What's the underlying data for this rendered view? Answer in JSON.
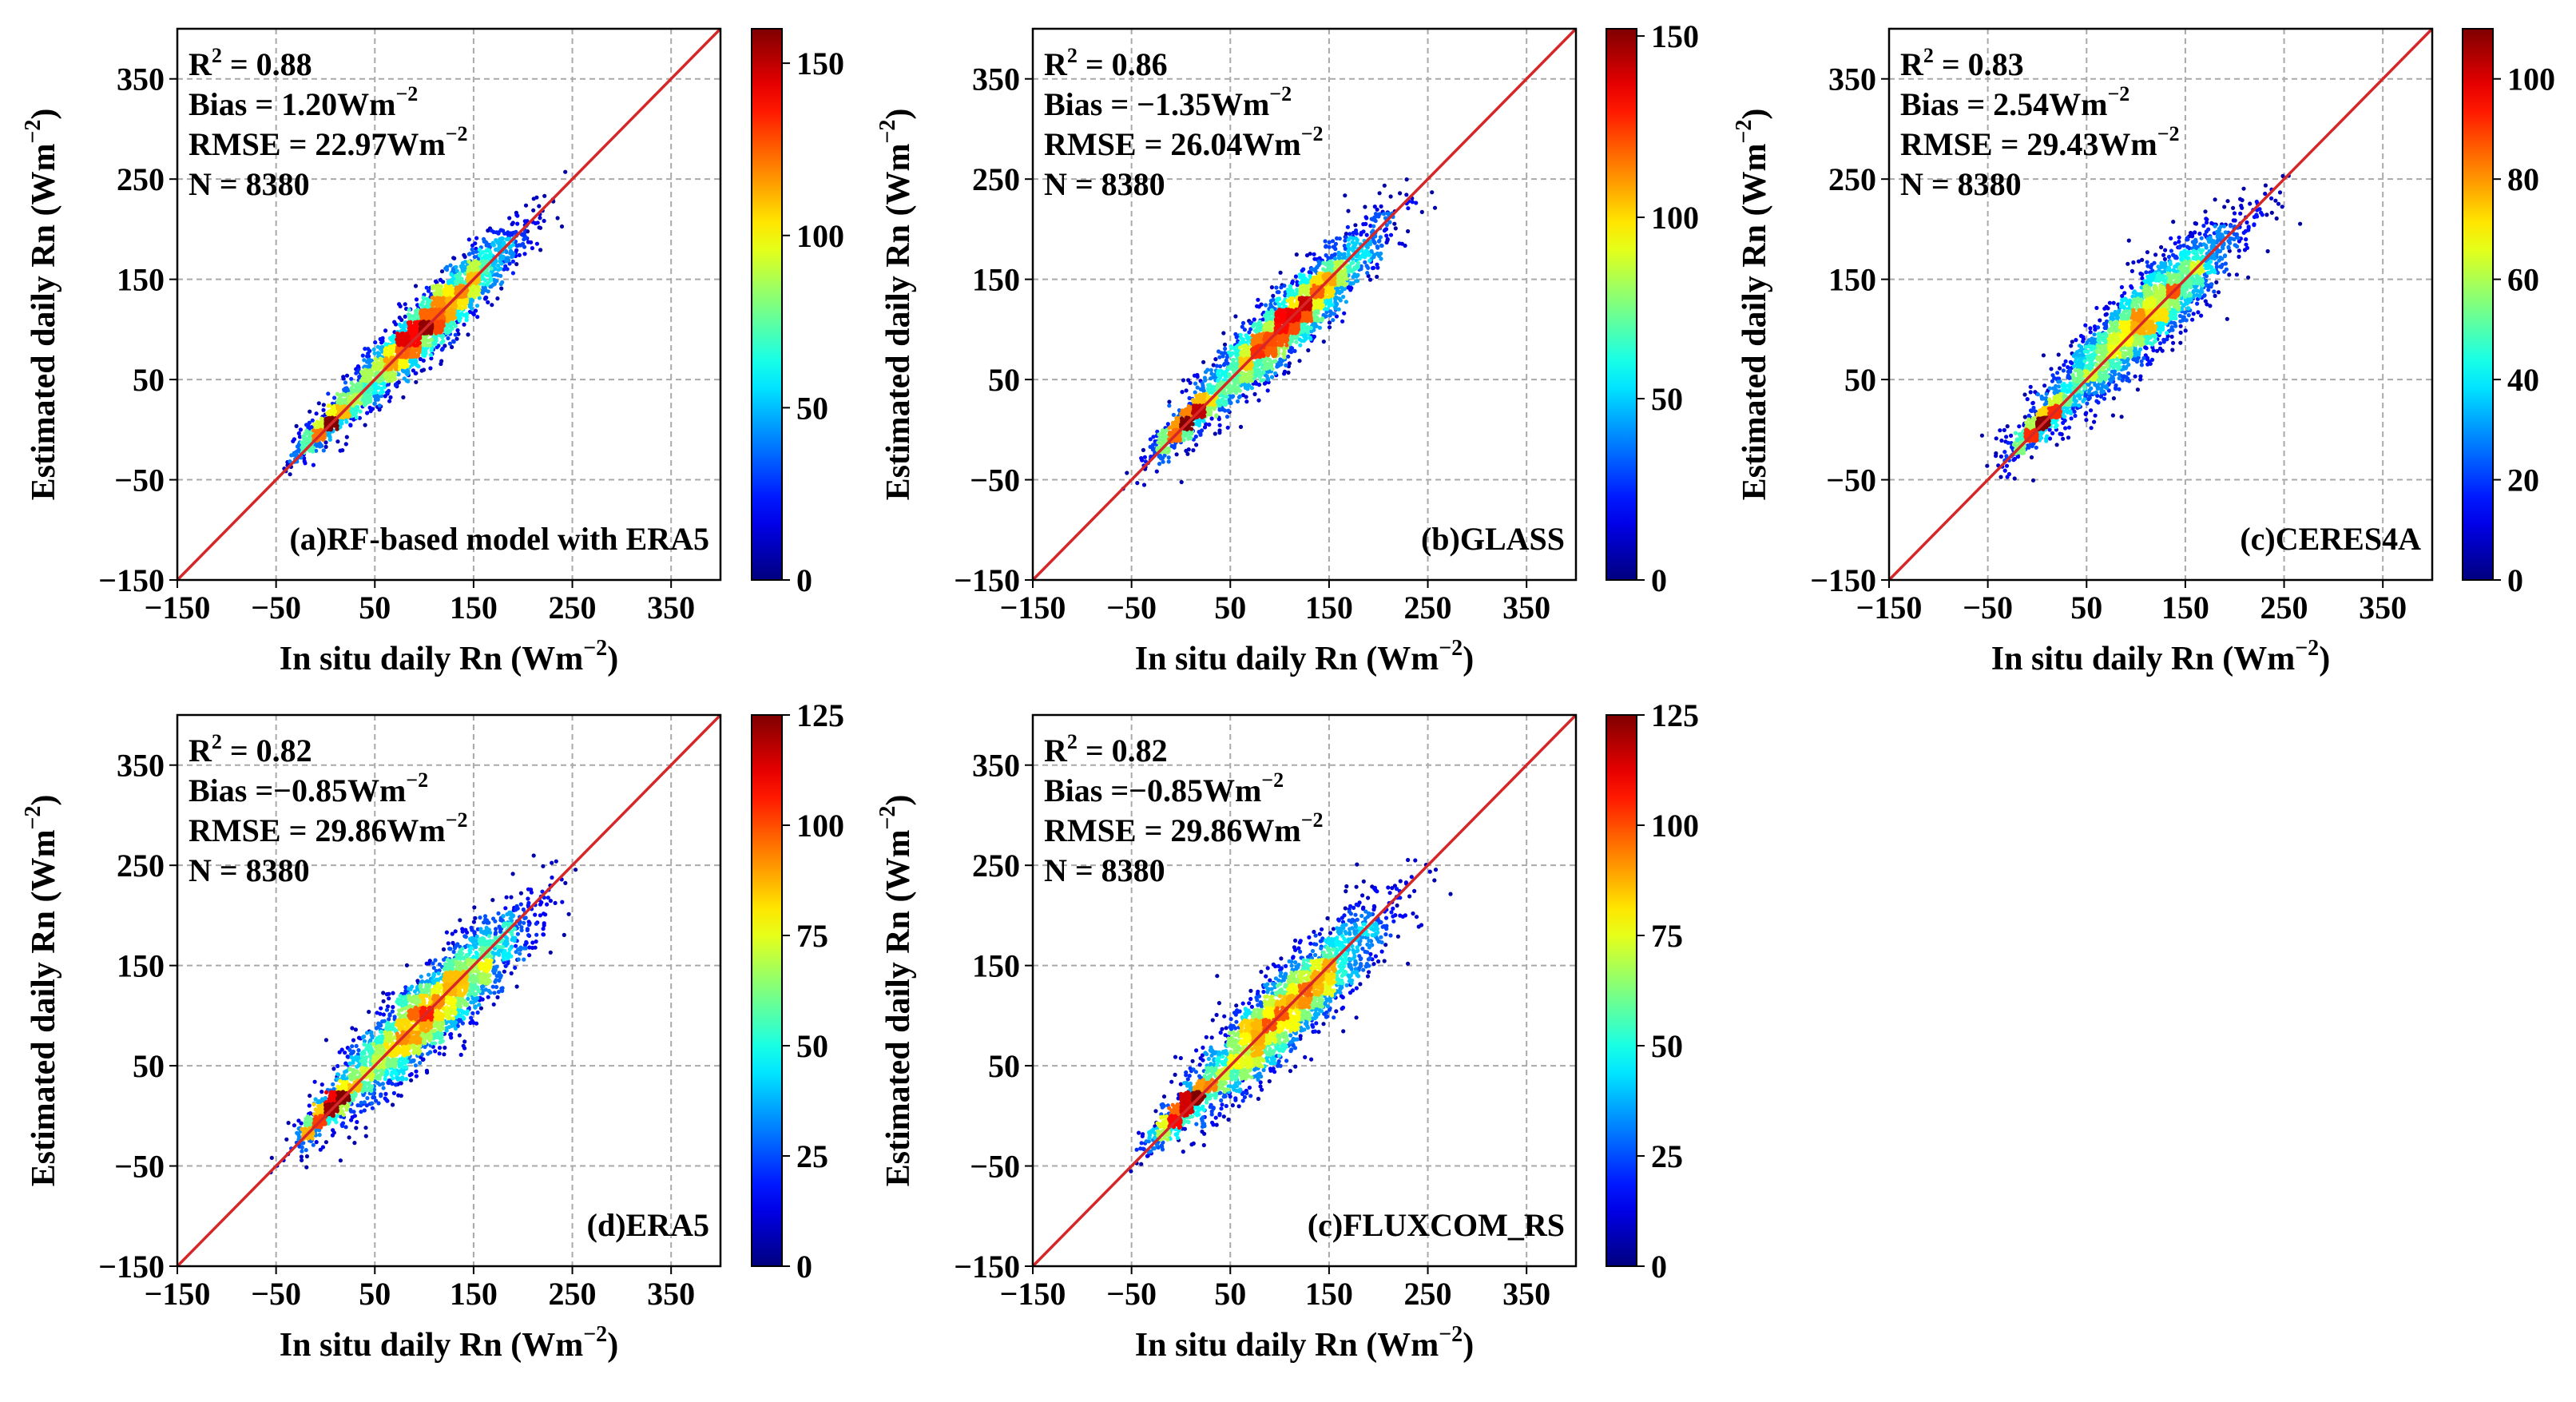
{
  "figure": {
    "colors": {
      "grid": "#a9a9a9",
      "one_to_one_line": "#d62728",
      "colormap": [
        "#00007f",
        "#0000ff",
        "#007fff",
        "#00ffff",
        "#7fff7f",
        "#ffff00",
        "#ff7f00",
        "#ff0000",
        "#7f0000"
      ]
    },
    "superscript": "2"
  },
  "chart_data": [
    {
      "type": "scatter",
      "subtype": "density-scatter",
      "panel_label": "(a)RF-based model with ERA5",
      "xlabel": "In situ daily Rn (Wm",
      "ylabel": "Estimated daily Rn (Wm",
      "unit_exponent": "−2",
      "xlim": [
        -150,
        400
      ],
      "ylim": [
        -150,
        400
      ],
      "ticks": [
        -150,
        -50,
        50,
        150,
        250,
        350
      ],
      "tick_labels": [
        "−150",
        "−50",
        "50",
        "150",
        "250",
        "350"
      ],
      "grid": true,
      "one_to_one_line": true,
      "stats": {
        "r2_label": "R",
        "r2_value": " = 0.88",
        "bias_label": "Bias = 1.20Wm",
        "rmse_label": "RMSE = 22.97Wm",
        "n_label": "N = 8380"
      },
      "scatter_params": {
        "sd": 36,
        "corr": 0.94,
        "mean_x": 105,
        "mean_y": 106,
        "n_points": 2400
      },
      "colorbar": {
        "min": 0,
        "max": 160,
        "ticks": [
          0,
          50,
          100,
          150
        ],
        "tick_labels": [
          "0",
          "50",
          "100",
          "150"
        ]
      }
    },
    {
      "type": "scatter",
      "subtype": "density-scatter",
      "panel_label": "(b)GLASS",
      "xlabel": "In situ daily Rn (Wm",
      "ylabel": "Estimated daily Rn (Wm",
      "unit_exponent": "−2",
      "xlim": [
        -150,
        400
      ],
      "ylim": [
        -150,
        400
      ],
      "ticks": [
        -150,
        -50,
        50,
        150,
        250,
        350
      ],
      "tick_labels": [
        "−150",
        "−50",
        "50",
        "150",
        "250",
        "350"
      ],
      "grid": true,
      "one_to_one_line": true,
      "stats": {
        "r2_label": "R",
        "r2_value": " = 0.86",
        "bias_label": "Bias = −1.35Wm",
        "rmse_label": "RMSE = 26.04Wm",
        "n_label": "N = 8380"
      },
      "scatter_params": {
        "sd": 38,
        "corr": 0.93,
        "mean_x": 105,
        "mean_y": 104,
        "n_points": 2400
      },
      "colorbar": {
        "min": 0,
        "max": 152,
        "ticks": [
          0,
          50,
          100,
          150
        ],
        "tick_labels": [
          "0",
          "50",
          "100",
          "150"
        ]
      }
    },
    {
      "type": "scatter",
      "subtype": "density-scatter",
      "panel_label": "(c)CERES4A",
      "xlabel": "In situ daily Rn (Wm",
      "ylabel": "Estimated daily Rn (Wm",
      "unit_exponent": "−2",
      "xlim": [
        -150,
        400
      ],
      "ylim": [
        -150,
        400
      ],
      "ticks": [
        -150,
        -50,
        50,
        150,
        250,
        350
      ],
      "tick_labels": [
        "−150",
        "−50",
        "50",
        "150",
        "250",
        "350"
      ],
      "grid": true,
      "one_to_one_line": true,
      "stats": {
        "r2_label": "R",
        "r2_value": " = 0.83",
        "bias_label": "Bias = 2.54Wm",
        "rmse_label": "RMSE = 29.43Wm",
        "n_label": "N = 8380"
      },
      "scatter_params": {
        "sd": 40,
        "corr": 0.91,
        "mean_x": 105,
        "mean_y": 108,
        "n_points": 2400
      },
      "colorbar": {
        "min": 0,
        "max": 110,
        "ticks": [
          0,
          20,
          40,
          60,
          80,
          100
        ],
        "tick_labels": [
          "0",
          "20",
          "40",
          "60",
          "80",
          "100"
        ]
      }
    },
    {
      "type": "scatter",
      "subtype": "density-scatter",
      "panel_label": "(d)ERA5",
      "xlabel": "In situ daily Rn (Wm",
      "ylabel": "Estimated daily Rn (Wm",
      "unit_exponent": "−2",
      "xlim": [
        -150,
        400
      ],
      "ylim": [
        -150,
        400
      ],
      "ticks": [
        -150,
        -50,
        50,
        150,
        250,
        350
      ],
      "tick_labels": [
        "−150",
        "−50",
        "50",
        "150",
        "250",
        "350"
      ],
      "grid": true,
      "one_to_one_line": true,
      "stats": {
        "r2_label": "R",
        "r2_value": " = 0.82",
        "bias_label": "Bias =−0.85Wm",
        "rmse_label": "RMSE = 29.86Wm",
        "n_label": "N = 8380"
      },
      "scatter_params": {
        "sd": 40,
        "corr": 0.9,
        "mean_x": 105,
        "mean_y": 104,
        "n_points": 2400
      },
      "colorbar": {
        "min": 0,
        "max": 125,
        "ticks": [
          0,
          25,
          50,
          75,
          100,
          125
        ],
        "tick_labels": [
          "0",
          "25",
          "50",
          "75",
          "100",
          "125"
        ]
      }
    },
    {
      "type": "scatter",
      "subtype": "density-scatter",
      "panel_label": "(c)FLUXCOM_RS",
      "xlabel": "In situ daily Rn (Wm",
      "ylabel": "Estimated daily Rn (Wm",
      "unit_exponent": "−2",
      "xlim": [
        -150,
        400
      ],
      "ylim": [
        -150,
        400
      ],
      "ticks": [
        -150,
        -50,
        50,
        150,
        250,
        350
      ],
      "tick_labels": [
        "−150",
        "−50",
        "50",
        "150",
        "250",
        "350"
      ],
      "grid": true,
      "one_to_one_line": true,
      "stats": {
        "r2_label": "R",
        "r2_value": " = 0.82",
        "bias_label": "Bias =−0.85Wm",
        "rmse_label": "RMSE = 29.86Wm",
        "n_label": "N = 8380"
      },
      "scatter_params": {
        "sd": 40,
        "corr": 0.9,
        "mean_x": 105,
        "mean_y": 104,
        "n_points": 2400
      },
      "colorbar": {
        "min": 0,
        "max": 125,
        "ticks": [
          0,
          25,
          50,
          75,
          100,
          125
        ],
        "tick_labels": [
          "0",
          "25",
          "50",
          "75",
          "100",
          "125"
        ]
      }
    }
  ]
}
